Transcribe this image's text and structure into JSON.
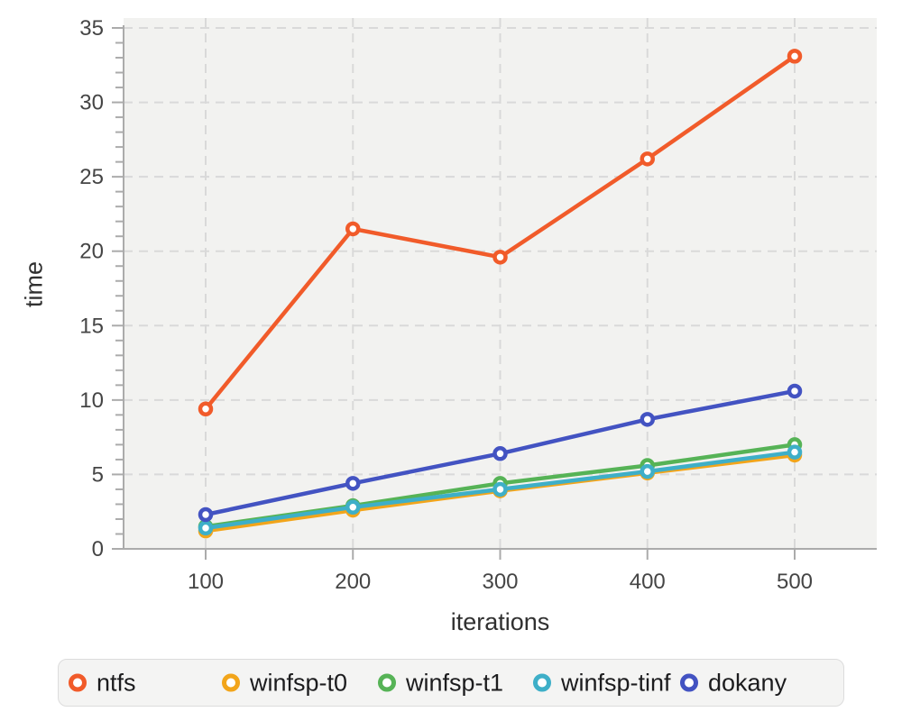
{
  "chart_data": {
    "type": "line",
    "x": [
      100,
      200,
      300,
      400,
      500
    ],
    "xticks": [
      100,
      200,
      300,
      400,
      500
    ],
    "yticks": [
      0,
      5,
      10,
      15,
      20,
      25,
      30,
      35
    ],
    "ylim": [
      0,
      35
    ],
    "xlabel": "iterations",
    "ylabel": "time",
    "grid": true,
    "grid_style": "dashed",
    "plot_background": "#f2f2f0",
    "gridline_color": "#d9d9d9",
    "axis_color": "#ababab",
    "marker": "open-circle",
    "legend_position": "bottom",
    "series": [
      {
        "name": "ntfs",
        "color": "#f15b2a",
        "values": [
          9.4,
          21.5,
          19.6,
          26.2,
          33.1
        ]
      },
      {
        "name": "winfsp-t0",
        "color": "#f2a51b",
        "values": [
          1.2,
          2.6,
          3.9,
          5.1,
          6.3
        ]
      },
      {
        "name": "winfsp-t1",
        "color": "#56b356",
        "values": [
          1.5,
          2.9,
          4.4,
          5.6,
          7.0
        ]
      },
      {
        "name": "winfsp-tinf",
        "color": "#3eafc8",
        "values": [
          1.4,
          2.8,
          4.0,
          5.2,
          6.5
        ]
      },
      {
        "name": "dokany",
        "color": "#4353c2",
        "values": [
          2.3,
          4.4,
          6.4,
          8.7,
          10.6
        ]
      }
    ]
  },
  "legend": {
    "items": [
      "ntfs",
      "winfsp-t0",
      "winfsp-t1",
      "winfsp-tinf",
      "dokany"
    ]
  }
}
